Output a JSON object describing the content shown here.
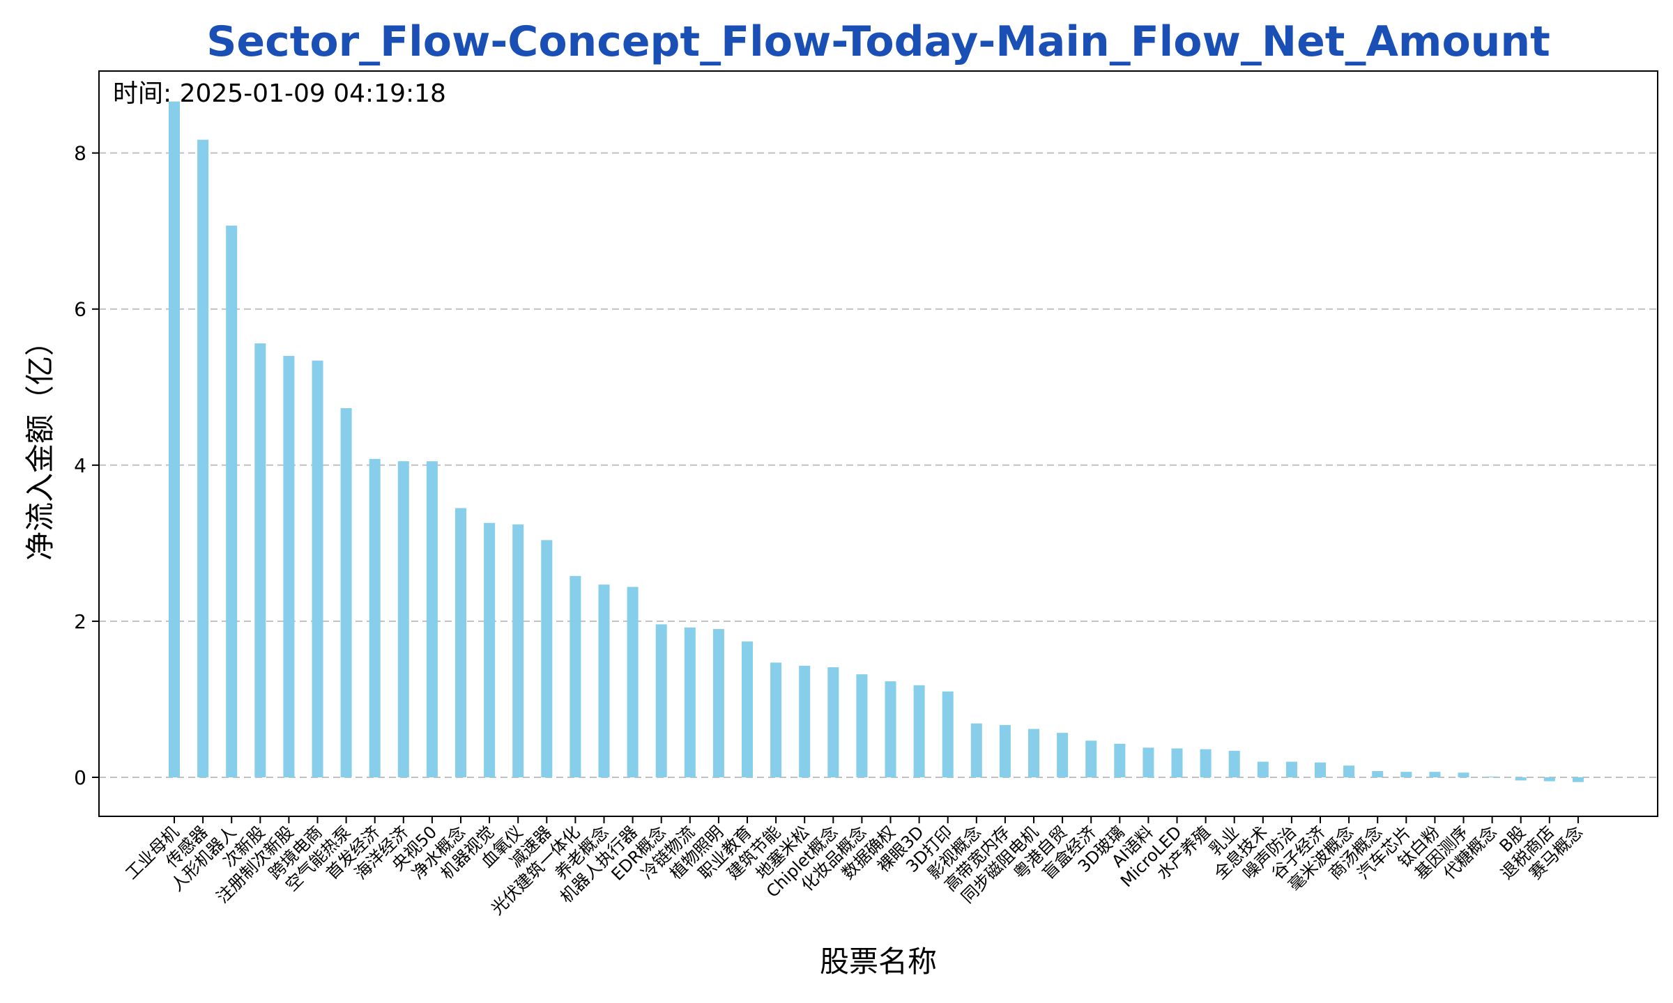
{
  "chart_data": {
    "type": "bar",
    "title": "Sector_Flow-Concept_Flow-Today-Main_Flow_Net_Amount",
    "xlabel": "股票名称",
    "ylabel": "净流入金额（亿）",
    "annotation": "时间: 2025-01-09 04:19:18",
    "ylim": [
      -0.5,
      9.05
    ],
    "yticks": [
      0,
      2,
      4,
      6,
      8
    ],
    "grid": "horizontal-dashed",
    "colors": {
      "bar": "#87CEEB",
      "title": "#1a4fb5",
      "grid": "#c0c0c0"
    },
    "categories": [
      "工业母机",
      "传感器",
      "人形机器人",
      "次新股",
      "注册制次新股",
      "跨境电商",
      "空气能热泵",
      "首发经济",
      "海洋经济",
      "央视50",
      "净水概念",
      "机器视觉",
      "血氧仪",
      "减速器",
      "光伏建筑一体化",
      "养老概念",
      "机器人执行器",
      "EDR概念",
      "冷链物流",
      "植物照明",
      "职业教育",
      "建筑节能",
      "地塞米松",
      "Chiplet概念",
      "化妆品概念",
      "数据确权",
      "裸眼3D",
      "3D打印",
      "影视概念",
      "高带宽内存",
      "同步磁阻电机",
      "粤港自贸",
      "盲盒经济",
      "3D玻璃",
      "AI语料",
      "MicroLED",
      "水产养殖",
      "乳业",
      "全息技术",
      "噪声防治",
      "谷子经济",
      "毫米波概念",
      "商汤概念",
      "汽车芯片",
      "钛白粉",
      "基因测序",
      "代糖概念",
      "B股",
      "退税商店",
      "赛马概念"
    ],
    "values": [
      8.66,
      8.17,
      7.07,
      5.56,
      5.4,
      5.34,
      4.73,
      4.08,
      4.05,
      4.05,
      3.45,
      3.26,
      3.24,
      3.04,
      2.58,
      2.47,
      2.44,
      1.96,
      1.92,
      1.9,
      1.74,
      1.47,
      1.43,
      1.41,
      1.32,
      1.23,
      1.18,
      1.1,
      0.69,
      0.67,
      0.62,
      0.57,
      0.47,
      0.43,
      0.38,
      0.37,
      0.36,
      0.34,
      0.2,
      0.2,
      0.19,
      0.15,
      0.08,
      0.07,
      0.07,
      0.06,
      0.01,
      -0.04,
      -0.05,
      -0.06
    ]
  }
}
